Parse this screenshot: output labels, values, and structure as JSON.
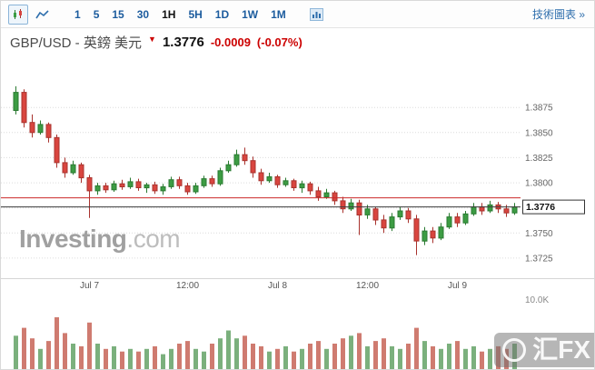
{
  "toolbar": {
    "timeframes": [
      "1",
      "5",
      "15",
      "30",
      "1H",
      "5H",
      "1D",
      "1W",
      "1M"
    ],
    "selected_timeframe": "1H",
    "tech_chart_link": "技術圖表 »"
  },
  "header": {
    "symbol": "GBP/USD - 英鎊 美元",
    "arrow": "▼",
    "price": "1.3776",
    "change": "-0.0009",
    "change_pct": "(-0.07%)"
  },
  "watermark": {
    "brand": "Investing",
    "suffix": ".com"
  },
  "overlay_watermark": {
    "text": "汇FX"
  },
  "chart_data": {
    "type": "candlestick",
    "symbol": "GBP/USD",
    "interval": "1H",
    "y_ticks": [
      1.3875,
      1.385,
      1.3825,
      1.38,
      1.3775,
      1.375,
      1.3725
    ],
    "y_range": [
      1.3715,
      1.3905
    ],
    "x_ticks": [
      {
        "index": 9,
        "label": "Jul 7"
      },
      {
        "index": 21,
        "label": "12:00"
      },
      {
        "index": 32,
        "label": "Jul 8"
      },
      {
        "index": 43,
        "label": "12:00"
      },
      {
        "index": 54,
        "label": "Jul 9"
      }
    ],
    "last_price": 1.3776,
    "last_price_label": "1.3776",
    "prev_close_line": 1.3785,
    "volume_axis_label": "10.0K",
    "colors": {
      "up_fill": "#3c9c43",
      "up_stroke": "#2a7a31",
      "down_fill": "#d9453f",
      "down_stroke": "#a8322d",
      "vol_up": "#7bb07d",
      "vol_down": "#cf7b70",
      "grid": "#dcdcdc",
      "prev_line": "#cc2a2a",
      "last_line": "#3a3a3a",
      "accent_blue": "#2f6fad",
      "change_red": "#cc0000"
    },
    "candles": [
      [
        1.3872,
        1.3896,
        1.3868,
        1.389
      ],
      [
        1.389,
        1.3893,
        1.3855,
        1.386
      ],
      [
        1.386,
        1.3868,
        1.3845,
        1.385
      ],
      [
        1.385,
        1.3862,
        1.3848,
        1.3858
      ],
      [
        1.3858,
        1.386,
        1.384,
        1.3845
      ],
      [
        1.3845,
        1.3848,
        1.3815,
        1.382
      ],
      [
        1.382,
        1.3825,
        1.3805,
        1.381
      ],
      [
        1.381,
        1.3822,
        1.3808,
        1.3818
      ],
      [
        1.3818,
        1.382,
        1.38,
        1.3805
      ],
      [
        1.3805,
        1.3808,
        1.3765,
        1.3792
      ],
      [
        1.3792,
        1.38,
        1.3788,
        1.3797
      ],
      [
        1.3797,
        1.38,
        1.379,
        1.3793
      ],
      [
        1.3793,
        1.3802,
        1.3791,
        1.3799
      ],
      [
        1.3799,
        1.3803,
        1.3793,
        1.3796
      ],
      [
        1.3796,
        1.3805,
        1.3794,
        1.3801
      ],
      [
        1.3801,
        1.3804,
        1.3792,
        1.3795
      ],
      [
        1.3795,
        1.38,
        1.379,
        1.3798
      ],
      [
        1.3798,
        1.3801,
        1.3789,
        1.3792
      ],
      [
        1.3792,
        1.3799,
        1.3788,
        1.3796
      ],
      [
        1.3796,
        1.3806,
        1.3794,
        1.3803
      ],
      [
        1.3803,
        1.3806,
        1.3794,
        1.3797
      ],
      [
        1.3797,
        1.38,
        1.3788,
        1.3791
      ],
      [
        1.3791,
        1.38,
        1.3789,
        1.3797
      ],
      [
        1.3797,
        1.3807,
        1.3795,
        1.3804
      ],
      [
        1.3804,
        1.3807,
        1.3796,
        1.3799
      ],
      [
        1.3799,
        1.3815,
        1.3797,
        1.3812
      ],
      [
        1.3812,
        1.3822,
        1.381,
        1.3818
      ],
      [
        1.3818,
        1.3833,
        1.3816,
        1.3828
      ],
      [
        1.3828,
        1.3835,
        1.3818,
        1.3822
      ],
      [
        1.3822,
        1.3826,
        1.3805,
        1.381
      ],
      [
        1.381,
        1.3814,
        1.3798,
        1.3802
      ],
      [
        1.3802,
        1.381,
        1.38,
        1.3806
      ],
      [
        1.3806,
        1.3808,
        1.3795,
        1.3798
      ],
      [
        1.3798,
        1.3805,
        1.3796,
        1.3802
      ],
      [
        1.3802,
        1.3804,
        1.3792,
        1.3795
      ],
      [
        1.3795,
        1.3802,
        1.379,
        1.3799
      ],
      [
        1.3799,
        1.3801,
        1.3788,
        1.3792
      ],
      [
        1.3792,
        1.3796,
        1.3782,
        1.3786
      ],
      [
        1.3786,
        1.3794,
        1.3784,
        1.379
      ],
      [
        1.379,
        1.3792,
        1.3778,
        1.3782
      ],
      [
        1.3782,
        1.3786,
        1.377,
        1.3774
      ],
      [
        1.3774,
        1.3784,
        1.3772,
        1.378
      ],
      [
        1.378,
        1.3783,
        1.3748,
        1.3768
      ],
      [
        1.3768,
        1.3778,
        1.3764,
        1.3774
      ],
      [
        1.3774,
        1.3776,
        1.3758,
        1.3763
      ],
      [
        1.3763,
        1.3768,
        1.375,
        1.3755
      ],
      [
        1.3755,
        1.377,
        1.3752,
        1.3766
      ],
      [
        1.3766,
        1.3776,
        1.3763,
        1.3772
      ],
      [
        1.3772,
        1.3775,
        1.376,
        1.3764
      ],
      [
        1.3764,
        1.3768,
        1.3728,
        1.3742
      ],
      [
        1.3742,
        1.3756,
        1.3738,
        1.3752
      ],
      [
        1.3752,
        1.3756,
        1.374,
        1.3745
      ],
      [
        1.3745,
        1.376,
        1.3743,
        1.3756
      ],
      [
        1.3756,
        1.377,
        1.3754,
        1.3766
      ],
      [
        1.3766,
        1.377,
        1.3756,
        1.376
      ],
      [
        1.376,
        1.3772,
        1.3758,
        1.3769
      ],
      [
        1.3769,
        1.378,
        1.3767,
        1.3776
      ],
      [
        1.3776,
        1.378,
        1.3768,
        1.3772
      ],
      [
        1.3772,
        1.3782,
        1.377,
        1.3778
      ],
      [
        1.3778,
        1.3781,
        1.377,
        1.3774
      ],
      [
        1.3774,
        1.3778,
        1.3766,
        1.377
      ],
      [
        1.377,
        1.378,
        1.3768,
        1.3776
      ]
    ],
    "volumes": [
      6.5,
      8,
      6,
      4,
      5.5,
      10,
      7,
      5,
      4.5,
      9,
      5,
      4,
      4.5,
      3.5,
      4,
      3.5,
      4,
      4.5,
      3,
      4,
      5,
      5.5,
      4,
      3.5,
      5,
      6,
      7.5,
      6,
      6.5,
      5,
      4.5,
      3.5,
      4,
      4.5,
      3.5,
      4,
      5,
      5.5,
      4,
      5,
      6,
      6.5,
      7,
      4.5,
      5.5,
      6,
      4.5,
      4,
      5,
      8,
      5.5,
      4.5,
      4,
      5,
      5.5,
      4,
      4.5,
      3.5,
      4,
      4.5,
      4,
      5
    ]
  }
}
